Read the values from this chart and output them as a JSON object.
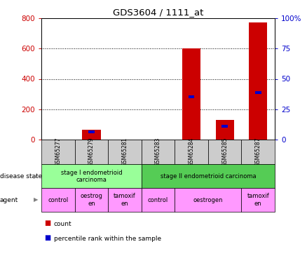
{
  "title": "GDS3604 / 1111_at",
  "samples": [
    "GSM65277",
    "GSM65279",
    "GSM65281",
    "GSM65283",
    "GSM65284",
    "GSM65285",
    "GSM65287"
  ],
  "count_values": [
    0,
    65,
    0,
    0,
    600,
    130,
    775
  ],
  "percentile_left_values": [
    0,
    48,
    0,
    0,
    280,
    88,
    310
  ],
  "ylim_left": [
    0,
    800
  ],
  "ylim_right": [
    0,
    100
  ],
  "yticks_left": [
    0,
    200,
    400,
    600,
    800
  ],
  "yticks_right": [
    0,
    25,
    50,
    75,
    100
  ],
  "ytick_labels_right": [
    "0",
    "25",
    "50",
    "75",
    "100%"
  ],
  "disease_state_groups": [
    {
      "label": "stage I endometrioid\ncarcinoma",
      "start": 0,
      "end": 3,
      "color": "#99ff99"
    },
    {
      "label": "stage II endometrioid carcinoma",
      "start": 3,
      "end": 7,
      "color": "#55cc55"
    }
  ],
  "agent_groups": [
    {
      "label": "control",
      "start": 0,
      "end": 1,
      "color": "#ff99ff"
    },
    {
      "label": "oestrog\nen",
      "start": 1,
      "end": 2,
      "color": "#ff99ff"
    },
    {
      "label": "tamoxif\nen",
      "start": 2,
      "end": 3,
      "color": "#ff99ff"
    },
    {
      "label": "control",
      "start": 3,
      "end": 4,
      "color": "#ff99ff"
    },
    {
      "label": "oestrogen",
      "start": 4,
      "end": 6,
      "color": "#ff99ff"
    },
    {
      "label": "tamoxif\nen",
      "start": 6,
      "end": 7,
      "color": "#ff99ff"
    }
  ],
  "bar_color_count": "#cc0000",
  "bar_color_percentile": "#0000cc",
  "axis_label_color_left": "#cc0000",
  "axis_label_color_right": "#0000cc",
  "grid_color": "#000000",
  "background_color": "#ffffff"
}
